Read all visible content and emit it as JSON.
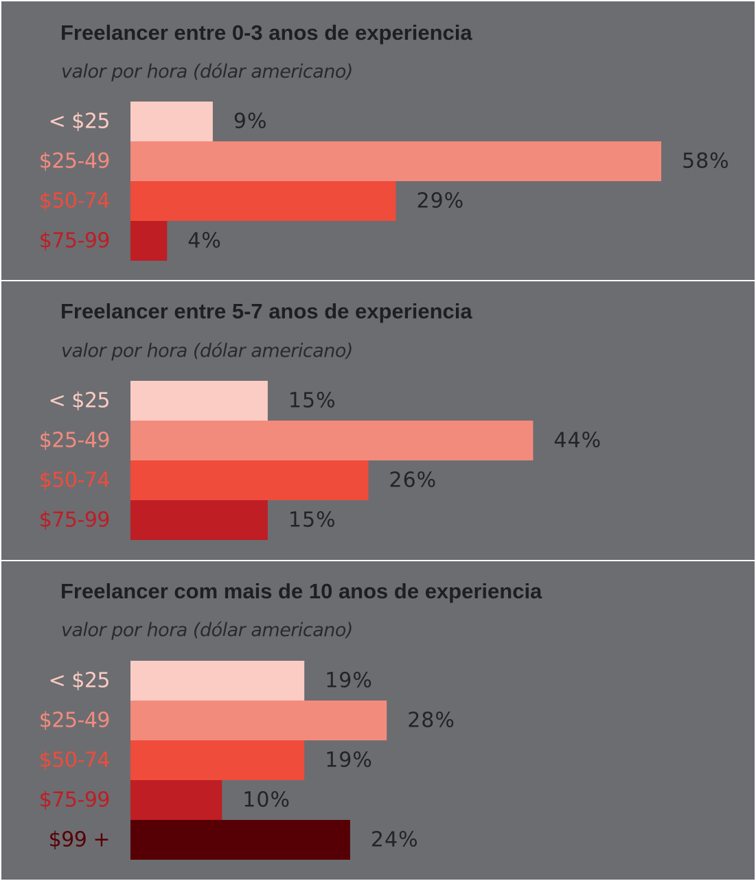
{
  "colors": {
    "background": "#6c6d71",
    "divider": "#ffffff",
    "title": "#1f1f22",
    "value_text": "#242427"
  },
  "chart_data": [
    {
      "type": "bar",
      "orientation": "horizontal",
      "title": "Freelancer entre 0-3 anos de experiencia",
      "subtitle": "valor por hora (dólar americano)",
      "categories": [
        "< $25",
        "$25-49",
        "$50-74",
        "$75-99"
      ],
      "values": [
        9,
        58,
        29,
        4
      ],
      "value_labels": [
        "9%",
        "58%",
        "29%",
        "4%"
      ],
      "bar_colors": [
        "#fbccc4",
        "#f38b7d",
        "#ef4c3b",
        "#be1e24"
      ],
      "label_colors": [
        "#fbccc4",
        "#f38b7d",
        "#ef4c3b",
        "#be1e24"
      ],
      "xlim": [
        0,
        60
      ],
      "grid": false,
      "legend": "none"
    },
    {
      "type": "bar",
      "orientation": "horizontal",
      "title": "Freelancer entre 5-7 anos de experiencia",
      "subtitle": "valor por hora (dólar americano)",
      "categories": [
        "< $25",
        "$25-49",
        "$50-74",
        "$75-99"
      ],
      "values": [
        15,
        44,
        26,
        15
      ],
      "value_labels": [
        "15%",
        "44%",
        "26%",
        "15%"
      ],
      "bar_colors": [
        "#fbccc4",
        "#f38b7d",
        "#ef4c3b",
        "#be1e24"
      ],
      "label_colors": [
        "#fbccc4",
        "#f38b7d",
        "#ef4c3b",
        "#be1e24"
      ],
      "xlim": [
        0,
        60
      ],
      "grid": false,
      "legend": "none"
    },
    {
      "type": "bar",
      "orientation": "horizontal",
      "title": "Freelancer com mais de 10 anos de experiencia",
      "subtitle": "valor por hora (dólar americano)",
      "categories": [
        "< $25",
        "$25-49",
        "$50-74",
        "$75-99",
        "$99 +"
      ],
      "values": [
        19,
        28,
        19,
        10,
        24
      ],
      "value_labels": [
        "19%",
        "28%",
        "19%",
        "10%",
        "24%"
      ],
      "bar_colors": [
        "#fbccc4",
        "#f38b7d",
        "#ef4c3b",
        "#be1e24",
        "#560006"
      ],
      "label_colors": [
        "#fbccc4",
        "#f38b7d",
        "#ef4c3b",
        "#be1e24",
        "#560006"
      ],
      "xlim": [
        0,
        60
      ],
      "grid": false,
      "legend": "none"
    }
  ]
}
